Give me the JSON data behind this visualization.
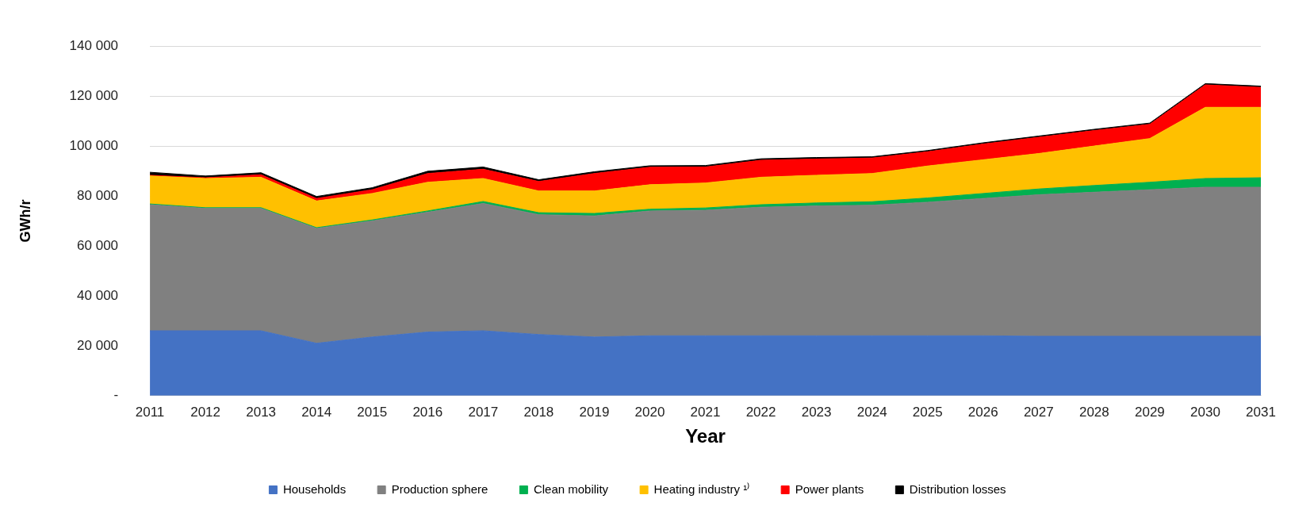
{
  "chart_data": {
    "type": "area",
    "stacked": true,
    "xlabel": "Year",
    "ylabel": "GWh/r",
    "legend": "bottom",
    "grid": "y",
    "categories": [
      "2011",
      "2012",
      "2013",
      "2014",
      "2015",
      "2016",
      "2017",
      "2018",
      "2019",
      "2020",
      "2021",
      "2022",
      "2023",
      "2024",
      "2025",
      "2026",
      "2027",
      "2028",
      "2029",
      "2030",
      "2031"
    ],
    "ylim": [
      0,
      140000
    ],
    "yticks": [
      {
        "value": 0,
        "label": "-"
      },
      {
        "value": 20000,
        "label": "20 000"
      },
      {
        "value": 40000,
        "label": "40 000"
      },
      {
        "value": 60000,
        "label": "60 000"
      },
      {
        "value": 80000,
        "label": "80 000"
      },
      {
        "value": 100000,
        "label": "100 000"
      },
      {
        "value": 120000,
        "label": "120 000"
      },
      {
        "value": 140000,
        "label": "140 000"
      }
    ],
    "series": [
      {
        "name": "Households",
        "color": "#4472c4",
        "values": [
          26000,
          26000,
          26000,
          21000,
          23500,
          25500,
          26000,
          24500,
          23500,
          24000,
          24000,
          24000,
          24000,
          24000,
          24000,
          24000,
          23800,
          23800,
          23800,
          23800,
          23800
        ]
      },
      {
        "name": "Production sphere",
        "color": "#808080",
        "values": [
          50500,
          49000,
          49000,
          46000,
          46500,
          48000,
          51000,
          48000,
          48500,
          50000,
          50300,
          51500,
          52000,
          52300,
          53500,
          55000,
          56700,
          57700,
          58700,
          59700,
          59700
        ]
      },
      {
        "name": "Clean mobility",
        "color": "#00b050",
        "values": [
          300,
          300,
          300,
          300,
          400,
          500,
          800,
          800,
          1000,
          700,
          900,
          1000,
          1200,
          1400,
          1700,
          2000,
          2300,
          2700,
          3000,
          3500,
          3800
        ]
      },
      {
        "name": "Heating industry ¹⁾",
        "color": "#ffc000",
        "values": [
          11200,
          11700,
          12200,
          10700,
          10600,
          11500,
          9200,
          8700,
          9000,
          9800,
          10000,
          11000,
          11100,
          11300,
          12800,
          13500,
          14200,
          15800,
          17500,
          28500,
          28200
        ]
      },
      {
        "name": "Power plants",
        "color": "#ff0000",
        "values": [
          300,
          300,
          1000,
          1000,
          1500,
          3500,
          3700,
          3800,
          7000,
          7000,
          6400,
          6800,
          6500,
          6200,
          5700,
          6300,
          6500,
          6200,
          5700,
          9000,
          8000
        ]
      },
      {
        "name": "Distribution losses",
        "color": "#000000",
        "values": [
          1200,
          700,
          800,
          800,
          800,
          900,
          900,
          700,
          700,
          600,
          600,
          600,
          600,
          500,
          500,
          500,
          500,
          500,
          500,
          500,
          500
        ]
      }
    ]
  }
}
